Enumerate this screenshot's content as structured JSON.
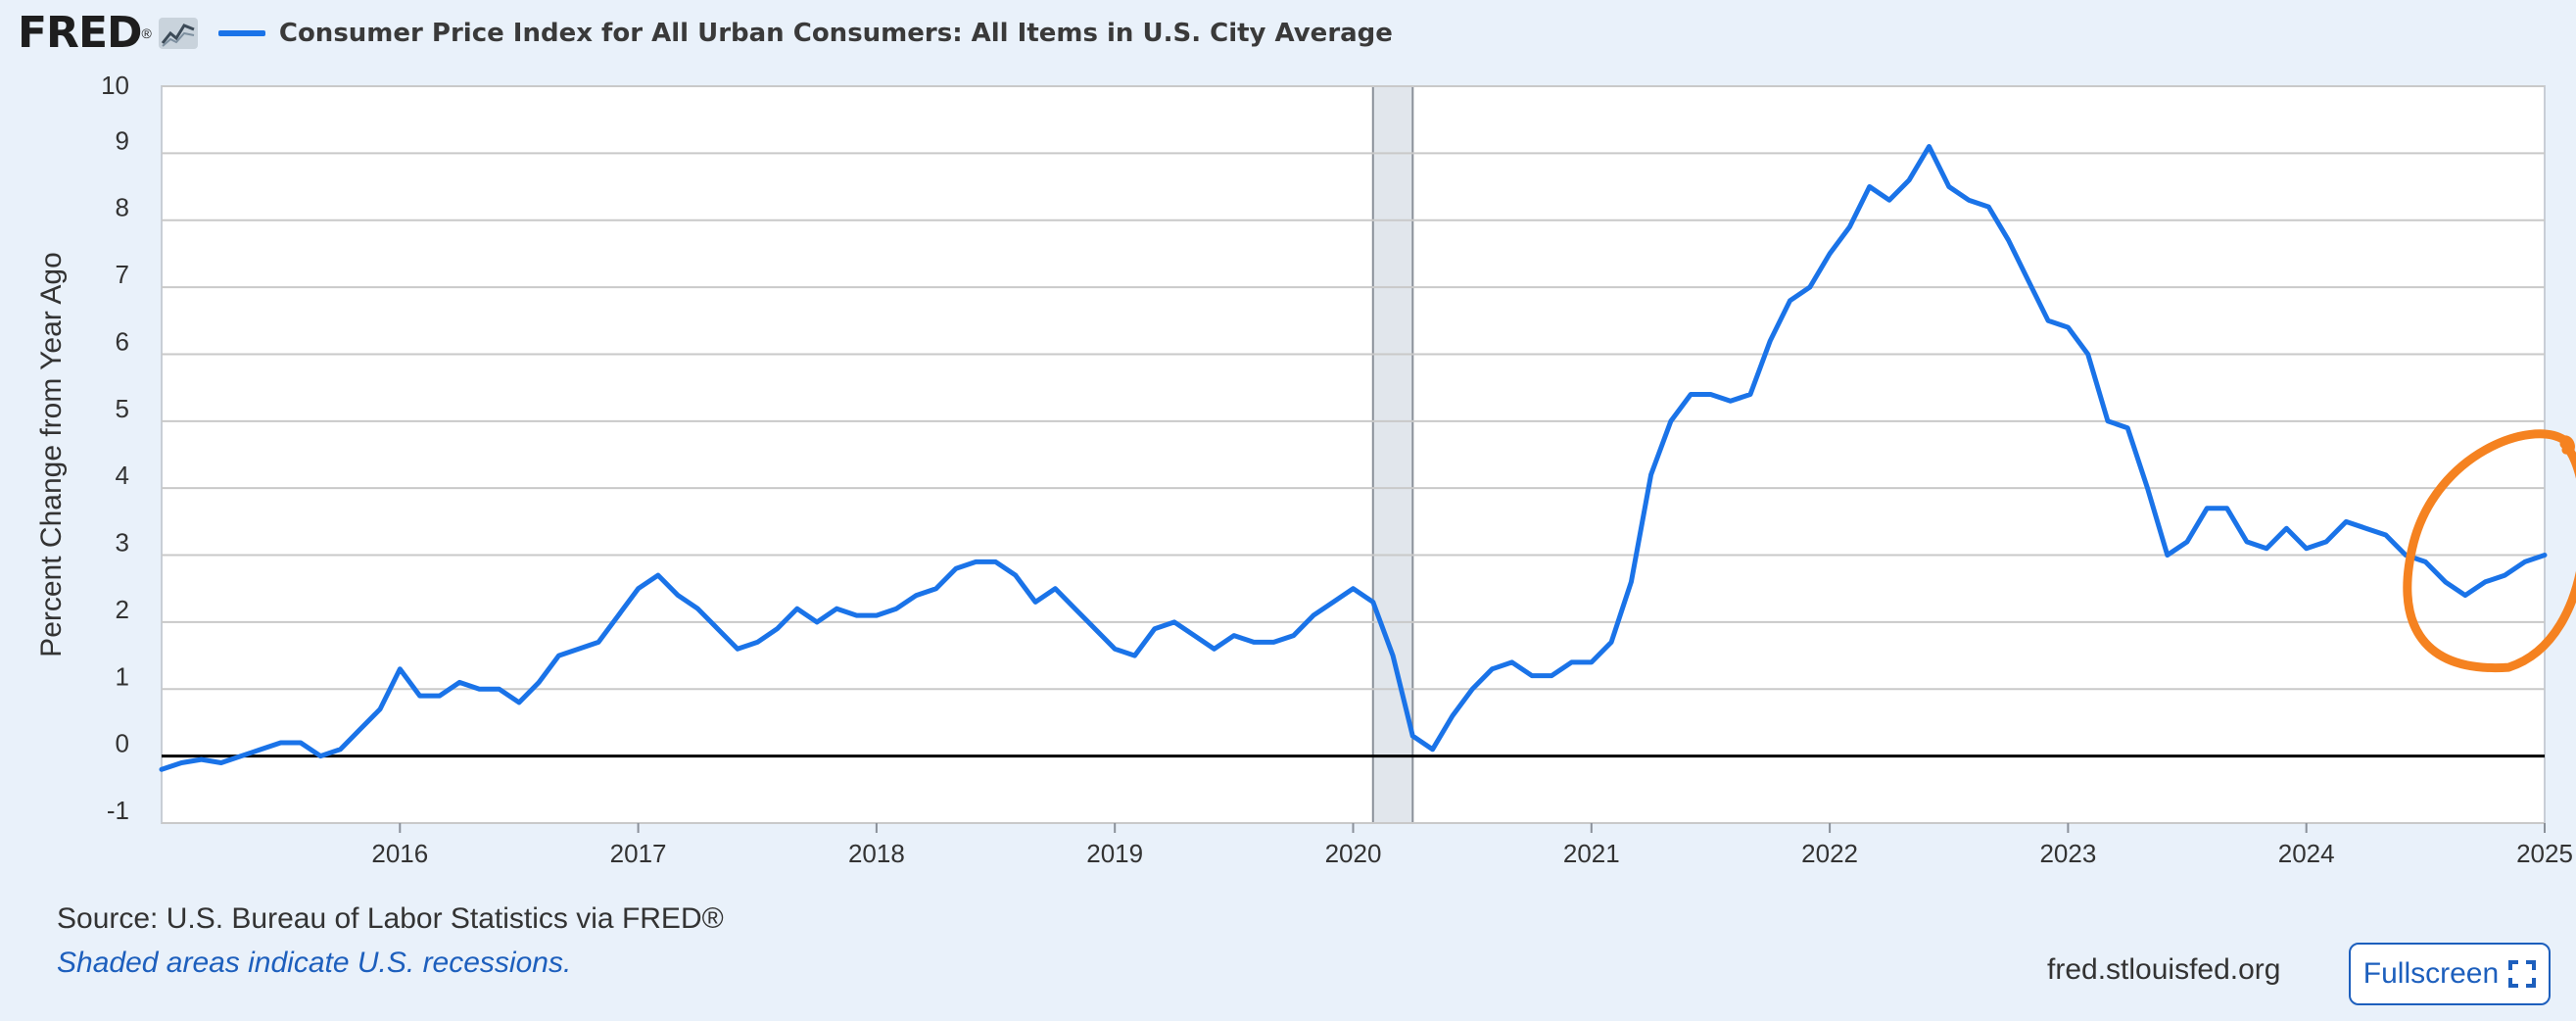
{
  "header": {
    "logo_text": "FRED",
    "logo_mark": "®",
    "logo_icon": "line-chart-icon"
  },
  "footer": {
    "source": "Source: U.S. Bureau of Labor Statistics via FRED®",
    "note": "Shaded areas indicate U.S. recessions.",
    "site": "fred.stlouisfed.org",
    "fullscreen_label": "Fullscreen",
    "fullscreen_icon": "expand-icon"
  },
  "colors": {
    "background": "#e9f1fa",
    "plot_background": "#ffffff",
    "series": "#1a73e8",
    "recession_shade": "#e1e6ec",
    "annotation": "#f58220",
    "link": "#1d5fbd"
  },
  "chart_data": {
    "type": "line",
    "title": "Consumer Price Index for All Urban Consumers: All Items in U.S. City Average",
    "ylabel": "Percent Change from Year Ago",
    "xlabel": "",
    "ylim": [
      -1,
      10
    ],
    "yticks": [
      -1,
      0,
      1,
      2,
      3,
      4,
      5,
      6,
      7,
      8,
      9,
      10
    ],
    "xlim": [
      "2015-01",
      "2025-01"
    ],
    "xticks": [
      "2016",
      "2017",
      "2018",
      "2019",
      "2020",
      "2021",
      "2022",
      "2023",
      "2024",
      "2025"
    ],
    "grid": true,
    "legend": "top-left",
    "zero_line": true,
    "recessions": [
      {
        "start": "2020-02",
        "end": "2020-04"
      }
    ],
    "annotations": [
      {
        "type": "hand-drawn-circle",
        "color": "#f58220",
        "around": [
          "2024-07",
          "2025-01"
        ]
      }
    ],
    "series": [
      {
        "name": "Consumer Price Index for All Urban Consumers: All Items in U.S. City Average",
        "start": "2015-01",
        "frequency": "monthly",
        "values": [
          -0.2,
          -0.1,
          -0.05,
          -0.1,
          0.0,
          0.1,
          0.2,
          0.2,
          0.0,
          0.1,
          0.4,
          0.7,
          1.3,
          0.9,
          0.9,
          1.1,
          1.0,
          1.0,
          0.8,
          1.1,
          1.5,
          1.6,
          1.7,
          2.1,
          2.5,
          2.7,
          2.4,
          2.2,
          1.9,
          1.6,
          1.7,
          1.9,
          2.2,
          2.0,
          2.2,
          2.1,
          2.1,
          2.2,
          2.4,
          2.5,
          2.8,
          2.9,
          2.9,
          2.7,
          2.3,
          2.5,
          2.2,
          1.9,
          1.6,
          1.5,
          1.9,
          2.0,
          1.8,
          1.6,
          1.8,
          1.7,
          1.7,
          1.8,
          2.1,
          2.3,
          2.5,
          2.3,
          1.5,
          0.3,
          0.1,
          0.6,
          1.0,
          1.3,
          1.4,
          1.2,
          1.2,
          1.4,
          1.4,
          1.7,
          2.6,
          4.2,
          5.0,
          5.4,
          5.4,
          5.3,
          5.4,
          6.2,
          6.8,
          7.0,
          7.5,
          7.9,
          8.5,
          8.3,
          8.6,
          9.1,
          8.5,
          8.3,
          8.2,
          7.7,
          7.1,
          6.5,
          6.4,
          6.0,
          5.0,
          4.9,
          4.0,
          3.0,
          3.2,
          3.7,
          3.7,
          3.2,
          3.1,
          3.4,
          3.1,
          3.2,
          3.5,
          3.4,
          3.3,
          3.0,
          2.9,
          2.6,
          2.4,
          2.6,
          2.7,
          2.9,
          3.0
        ]
      }
    ]
  }
}
